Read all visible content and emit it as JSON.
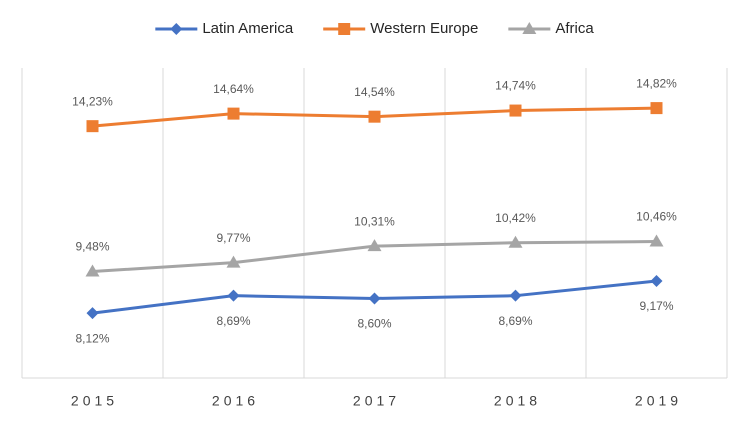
{
  "chart_data": {
    "type": "line",
    "categories": [
      "2015",
      "2016",
      "2017",
      "2018",
      "2019"
    ],
    "series": [
      {
        "name": "Latin America",
        "color": "#4472c4",
        "marker": "diamond",
        "label_position": "below",
        "values": [
          8.12,
          8.69,
          8.6,
          8.69,
          9.17
        ],
        "value_labels": [
          "8,12%",
          "8,69%",
          "8,60%",
          "8,69%",
          "9,17%"
        ]
      },
      {
        "name": "Western Europe",
        "color": "#ed7d31",
        "marker": "square",
        "label_position": "above",
        "values": [
          14.23,
          14.64,
          14.54,
          14.74,
          14.82
        ],
        "value_labels": [
          "14,23%",
          "14,64%",
          "14,54%",
          "14,74%",
          "14,82%"
        ]
      },
      {
        "name": "Africa",
        "color": "#a5a5a5",
        "marker": "triangle",
        "label_position": "above",
        "values": [
          9.48,
          9.77,
          10.31,
          10.42,
          10.46
        ],
        "value_labels": [
          "9,48%",
          "9,77%",
          "10,31%",
          "10,42%",
          "10,46%"
        ]
      }
    ],
    "ylim": [
      6,
      16
    ],
    "legend": "top",
    "grid": true
  }
}
